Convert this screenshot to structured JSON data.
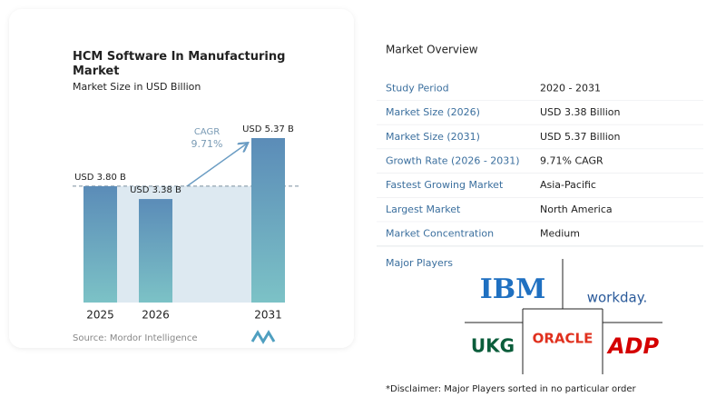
{
  "chart_data": {
    "type": "bar",
    "title": "HCM Software In Manufacturing Market",
    "subtitle": "Market Size in USD Billion",
    "categories": [
      "2025",
      "2026",
      "2031"
    ],
    "values": [
      3.8,
      3.38,
      5.37
    ],
    "value_labels": [
      "USD 3.80 B",
      "USD 3.38 B",
      "USD 5.37 B"
    ],
    "annotations": [
      "CAGR",
      "9.71%"
    ],
    "source": "Source: Mordor Intelligence"
  },
  "overview": {
    "title": "Market Overview",
    "rows": [
      [
        "Study Period",
        "2020 - 2031"
      ],
      [
        "Market Size (2026)",
        "USD 3.38 Billion"
      ],
      [
        "Market Size (2031)",
        "USD 5.37 Billion"
      ],
      [
        "Growth Rate (2026 - 2031)",
        "9.71% CAGR"
      ],
      [
        "Fastest Growing Market",
        "Asia-Pacific"
      ],
      [
        "Largest Market",
        "North America"
      ],
      [
        "Market Concentration",
        "Medium"
      ]
    ],
    "players_title": "Major Players",
    "players": [
      "IBM",
      "workday.",
      "UKG",
      "ORACLE",
      "ADP"
    ],
    "disclaimer": "*Disclaimer: Major Players sorted in no particular order"
  }
}
